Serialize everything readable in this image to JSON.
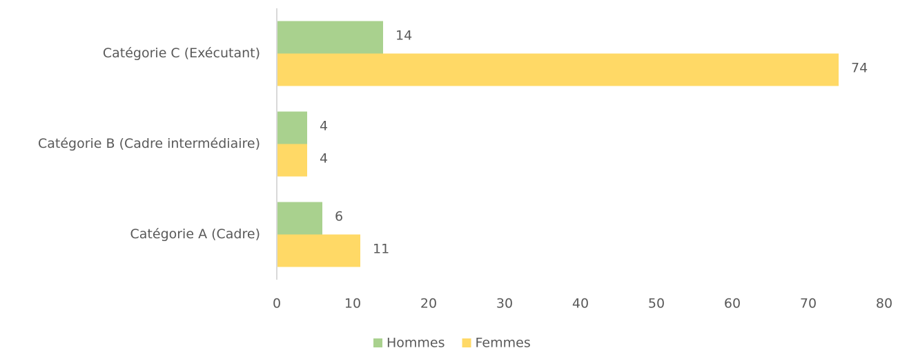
{
  "chart_data": {
    "type": "hbar",
    "categories": [
      "Catégorie C (Exécutant)",
      "Catégorie B (Cadre intermédiaire)",
      "Catégorie A (Cadre)"
    ],
    "series": [
      {
        "name": "Hommes",
        "color": "#a9d18e",
        "values": [
          14,
          4,
          6
        ]
      },
      {
        "name": "Femmes",
        "color": "#ffd966",
        "values": [
          74,
          4,
          11
        ]
      }
    ],
    "xlim": [
      0,
      80
    ],
    "xticks": [
      0,
      10,
      20,
      30,
      40,
      50,
      60,
      70,
      80
    ],
    "grid": false,
    "legend": "bottom"
  }
}
